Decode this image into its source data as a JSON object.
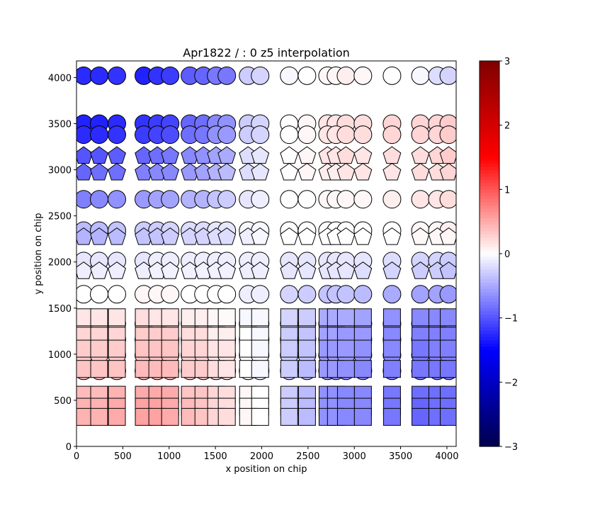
{
  "chart_data": {
    "type": "scatter",
    "title": "Apr1822 / : 0 z5 interpolation",
    "xlabel": "x position on chip",
    "ylabel": "y position on chip",
    "xlim": [
      0,
      4100
    ],
    "ylim": [
      0,
      4180
    ],
    "xticks": [
      0,
      500,
      1000,
      1500,
      2000,
      2500,
      3000,
      3500,
      4000
    ],
    "yticks": [
      0,
      500,
      1000,
      1500,
      2000,
      2500,
      3000,
      3500,
      4000
    ],
    "grid": false,
    "colorbar": {
      "colormap": "seismic",
      "range": [
        -3,
        3
      ],
      "ticks": [
        -3,
        -2,
        -1,
        0,
        1,
        2,
        3
      ],
      "tick_labels": [
        "−3",
        "−2",
        "−1",
        "0",
        "1",
        "2",
        "3"
      ]
    },
    "columns_x": [
      77,
      245,
      436,
      727,
      873,
      1011,
      1225,
      1371,
      1508,
      1623,
      1853,
      1983,
      2297,
      2489,
      2711,
      2802,
      2910,
      3093,
      3407,
      3714,
      3897,
      4020
    ],
    "rows": [
      {
        "shape": "circle",
        "y": 4020,
        "values": [
          -1.25,
          -1.25,
          -1.2,
          -1.3,
          -1.2,
          -1.15,
          -0.95,
          -0.9,
          -0.8,
          -0.8,
          -0.3,
          -0.25,
          -0.05,
          0,
          0.05,
          0.05,
          0.1,
          0.05,
          0.0,
          -0.05,
          -0.2,
          -0.25
        ]
      },
      {
        "shape": "circle",
        "y": 3500,
        "values": [
          -1.3,
          -1.3,
          -1.25,
          -1.2,
          -1.15,
          -1.1,
          -0.9,
          -0.85,
          -0.7,
          -0.65,
          -0.3,
          -0.25,
          0,
          0.05,
          0.15,
          0.15,
          0.2,
          0.2,
          0.25,
          0.25,
          0.25,
          0.3
        ]
      },
      {
        "shape": "circle",
        "y": 3380,
        "values": [
          -1.25,
          -1.25,
          -1.2,
          -1.15,
          -1.1,
          -1.05,
          -0.85,
          -0.8,
          -0.65,
          -0.6,
          -0.3,
          -0.25,
          0,
          0.05,
          0.15,
          0.15,
          0.2,
          0.2,
          0.25,
          0.25,
          0.25,
          0.3
        ]
      },
      {
        "shape": "pentagon",
        "y": 3150,
        "values": [
          -1.0,
          -1.0,
          -0.95,
          -0.9,
          -0.85,
          -0.8,
          -0.7,
          -0.65,
          -0.55,
          -0.5,
          -0.2,
          -0.15,
          0,
          0.05,
          0.15,
          0.15,
          0.2,
          0.15,
          0.2,
          0.2,
          0.25,
          0.3
        ]
      },
      {
        "shape": "pentagon",
        "y": 2970,
        "values": [
          -0.9,
          -0.85,
          -0.85,
          -0.75,
          -0.7,
          -0.7,
          -0.6,
          -0.55,
          -0.45,
          -0.4,
          -0.2,
          -0.15,
          0,
          0.05,
          0.1,
          0.1,
          0.15,
          0.15,
          0.15,
          0.2,
          0.2,
          0.25
        ]
      },
      {
        "shape": "circle",
        "y": 2680,
        "values": [
          -0.75,
          -0.7,
          -0.65,
          -0.6,
          -0.55,
          -0.55,
          -0.45,
          -0.45,
          -0.35,
          -0.3,
          -0.15,
          -0.1,
          0,
          0,
          0.05,
          0.05,
          0.05,
          0.05,
          0.1,
          0.15,
          0.15,
          0.2
        ]
      },
      {
        "shape": "circle",
        "y": 2340,
        "values": [
          -0.4,
          -0.4,
          -0.35,
          -0.3,
          -0.3,
          -0.25,
          -0.2,
          -0.2,
          -0.15,
          -0.15,
          -0.05,
          -0.05,
          0,
          0,
          0,
          0,
          0,
          0,
          0,
          0.05,
          0.05,
          0.1
        ]
      },
      {
        "shape": "pentagon",
        "y": 2270,
        "values": [
          -0.45,
          -0.45,
          -0.4,
          -0.35,
          -0.35,
          -0.3,
          -0.25,
          -0.25,
          -0.2,
          -0.2,
          -0.1,
          -0.05,
          0,
          0,
          0,
          0,
          0,
          0,
          0,
          0.05,
          0.05,
          0.05
        ]
      },
      {
        "shape": "circle",
        "y": 2010,
        "values": [
          -0.15,
          -0.15,
          -0.15,
          -0.15,
          -0.1,
          -0.1,
          -0.1,
          -0.1,
          -0.1,
          -0.1,
          -0.1,
          -0.1,
          -0.15,
          -0.15,
          -0.15,
          -0.15,
          -0.15,
          -0.15,
          -0.2,
          -0.25,
          -0.25,
          -0.3
        ]
      },
      {
        "shape": "pentagon",
        "y": 1900,
        "values": [
          -0.1,
          -0.1,
          -0.1,
          -0.1,
          -0.08,
          -0.08,
          -0.08,
          -0.08,
          -0.08,
          -0.08,
          -0.1,
          -0.1,
          -0.15,
          -0.15,
          -0.15,
          -0.15,
          -0.15,
          -0.2,
          -0.25,
          -0.3,
          -0.3,
          -0.35
        ]
      },
      {
        "shape": "circle",
        "y": 1650,
        "values": [
          0,
          0,
          0,
          0.05,
          0.05,
          0.05,
          0,
          0,
          0,
          0,
          -0.1,
          -0.1,
          -0.25,
          -0.3,
          -0.35,
          -0.35,
          -0.35,
          -0.4,
          -0.5,
          -0.55,
          -0.55,
          -0.6
        ]
      },
      {
        "shape": "circle",
        "y": 1330,
        "values": [
          0.2,
          0.2,
          0.2,
          0.25,
          0.25,
          0.25,
          0.15,
          0.15,
          0.05,
          0.05,
          0,
          -0.05,
          -0.25,
          -0.3,
          -0.5,
          -0.5,
          -0.5,
          -0.55,
          -0.65,
          -0.7,
          -0.7,
          -0.7
        ]
      },
      {
        "shape": "square",
        "y": 1400,
        "values": [
          0.15,
          0.15,
          0.15,
          0.2,
          0.15,
          0.15,
          0.1,
          0.1,
          0.05,
          0.03,
          -0.05,
          -0.05,
          -0.25,
          -0.3,
          -0.5,
          -0.5,
          -0.5,
          -0.55,
          -0.65,
          -0.7,
          -0.7,
          -0.7
        ]
      },
      {
        "shape": "circle",
        "y": 1160,
        "values": [
          0.25,
          0.25,
          0.25,
          0.3,
          0.3,
          0.3,
          0.2,
          0.2,
          0.1,
          0.1,
          0,
          -0.05,
          -0.3,
          -0.35,
          -0.55,
          -0.55,
          -0.6,
          -0.6,
          -0.7,
          -0.75,
          -0.75,
          -0.75
        ]
      },
      {
        "shape": "square",
        "y": 1200,
        "values": [
          0.25,
          0.25,
          0.25,
          0.3,
          0.3,
          0.3,
          0.2,
          0.2,
          0.1,
          0.1,
          0,
          -0.05,
          -0.3,
          -0.35,
          -0.55,
          -0.55,
          -0.6,
          -0.6,
          -0.7,
          -0.75,
          -0.75,
          -0.75
        ]
      },
      {
        "shape": "circle",
        "y": 990,
        "values": [
          0.3,
          0.3,
          0.3,
          0.35,
          0.35,
          0.35,
          0.25,
          0.25,
          0.15,
          0.15,
          0,
          -0.05,
          -0.3,
          -0.35,
          -0.6,
          -0.6,
          -0.6,
          -0.65,
          -0.7,
          -0.8,
          -0.75,
          -0.75
        ]
      },
      {
        "shape": "square",
        "y": 1060,
        "values": [
          0.3,
          0.3,
          0.3,
          0.35,
          0.35,
          0.35,
          0.25,
          0.25,
          0.15,
          0.15,
          0,
          -0.05,
          -0.3,
          -0.35,
          -0.6,
          -0.6,
          -0.6,
          -0.65,
          -0.7,
          -0.8,
          -0.75,
          -0.75
        ]
      },
      {
        "shape": "circle",
        "y": 820,
        "values": [
          0.35,
          0.35,
          0.35,
          0.4,
          0.4,
          0.4,
          0.3,
          0.3,
          0.2,
          0.15,
          0,
          -0.05,
          -0.3,
          -0.4,
          -0.6,
          -0.6,
          -0.65,
          -0.7,
          -0.75,
          -0.8,
          -0.8,
          -0.8
        ]
      },
      {
        "shape": "square",
        "y": 840,
        "values": [
          0.35,
          0.35,
          0.35,
          0.4,
          0.4,
          0.4,
          0.3,
          0.3,
          0.2,
          0.15,
          0,
          -0.05,
          -0.3,
          -0.4,
          -0.6,
          -0.6,
          -0.65,
          -0.7,
          -0.75,
          -0.8,
          -0.8,
          -0.8
        ]
      },
      {
        "shape": "square",
        "y": 560,
        "values": [
          0.4,
          0.4,
          0.45,
          0.5,
          0.5,
          0.5,
          0.35,
          0.35,
          0.25,
          0.2,
          0.05,
          0,
          -0.3,
          -0.4,
          -0.65,
          -0.65,
          -0.7,
          -0.7,
          -0.8,
          -0.85,
          -0.85,
          -0.85
        ]
      },
      {
        "shape": "square",
        "y": 430,
        "values": [
          0.45,
          0.45,
          0.5,
          0.55,
          0.55,
          0.5,
          0.4,
          0.35,
          0.25,
          0.2,
          0.05,
          0,
          -0.3,
          -0.4,
          -0.65,
          -0.65,
          -0.7,
          -0.7,
          -0.8,
          -0.9,
          -0.85,
          -0.85
        ]
      },
      {
        "shape": "square",
        "y": 320,
        "values": [
          0.45,
          0.45,
          0.5,
          0.55,
          0.55,
          0.5,
          0.4,
          0.35,
          0.25,
          0.2,
          0.05,
          0,
          -0.3,
          -0.4,
          -0.65,
          -0.65,
          -0.7,
          -0.7,
          -0.8,
          -0.9,
          -0.85,
          -0.85
        ]
      }
    ]
  }
}
